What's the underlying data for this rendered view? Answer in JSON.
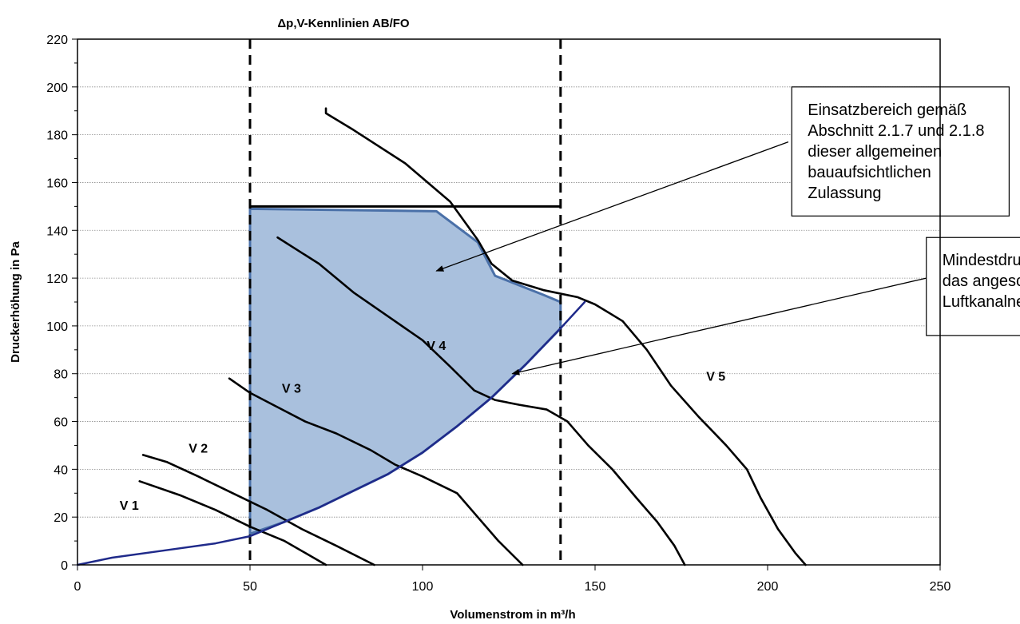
{
  "chart_data": {
    "type": "line",
    "title": "Δp,V-Kennlinien AB/FO",
    "xlabel": "Volumenstrom in m³/h",
    "ylabel": "Druckerhöhung in Pa",
    "xlim": [
      0,
      250
    ],
    "ylim": [
      0,
      220
    ],
    "x_ticks": [
      "0",
      "50",
      "100",
      "150",
      "200",
      "250"
    ],
    "y_ticks": [
      "0",
      "20",
      "40",
      "60",
      "80",
      "100",
      "120",
      "140",
      "160",
      "180",
      "200",
      "220"
    ],
    "grid": "horizontal",
    "legend": "none",
    "series": [
      {
        "name": "V 1",
        "points": [
          [
            18,
            35
          ],
          [
            30,
            29
          ],
          [
            40,
            23
          ],
          [
            50,
            16
          ],
          [
            60,
            10
          ],
          [
            66,
            5
          ],
          [
            72,
            0
          ]
        ]
      },
      {
        "name": "V 2",
        "points": [
          [
            19,
            46
          ],
          [
            26,
            43
          ],
          [
            35,
            37
          ],
          [
            45,
            30
          ],
          [
            55,
            23
          ],
          [
            65,
            15
          ],
          [
            75,
            8
          ],
          [
            86,
            0
          ]
        ]
      },
      {
        "name": "V 3",
        "points": [
          [
            44,
            78
          ],
          [
            50,
            72
          ],
          [
            58,
            66
          ],
          [
            66,
            60
          ],
          [
            75,
            55
          ],
          [
            85,
            48
          ],
          [
            92,
            42
          ],
          [
            100,
            37
          ],
          [
            110,
            30
          ],
          [
            116,
            20
          ],
          [
            122,
            10
          ],
          [
            129,
            0
          ]
        ]
      },
      {
        "name": "V 4",
        "points": [
          [
            58,
            137
          ],
          [
            70,
            126
          ],
          [
            80,
            114
          ],
          [
            90,
            104
          ],
          [
            100,
            94
          ],
          [
            108,
            83
          ],
          [
            115,
            73
          ],
          [
            121,
            69
          ],
          [
            128,
            67
          ],
          [
            136,
            65
          ],
          [
            142,
            60
          ],
          [
            148,
            50
          ],
          [
            155,
            40
          ],
          [
            162,
            28
          ],
          [
            168,
            18
          ],
          [
            173,
            8
          ],
          [
            176,
            0
          ]
        ]
      },
      {
        "name": "V 5",
        "points": [
          [
            72,
            191
          ],
          [
            72,
            189
          ],
          [
            80,
            182
          ],
          [
            95,
            168
          ],
          [
            108,
            152
          ],
          [
            116,
            136
          ],
          [
            120,
            126
          ],
          [
            126,
            119
          ],
          [
            135,
            115
          ],
          [
            145,
            112
          ],
          [
            150,
            109
          ],
          [
            158,
            102
          ],
          [
            165,
            90
          ],
          [
            172,
            75
          ],
          [
            180,
            62
          ],
          [
            188,
            50
          ],
          [
            194,
            40
          ],
          [
            198,
            28
          ],
          [
            203,
            15
          ],
          [
            208,
            5
          ],
          [
            211,
            0
          ]
        ]
      },
      {
        "name": "Mindestdruckreserve",
        "color": "#1f2a8a",
        "points": [
          [
            0,
            0
          ],
          [
            10,
            3
          ],
          [
            25,
            6
          ],
          [
            40,
            9
          ],
          [
            50,
            12
          ],
          [
            60,
            18
          ],
          [
            70,
            24
          ],
          [
            80,
            31
          ],
          [
            90,
            38
          ],
          [
            100,
            47
          ],
          [
            110,
            58
          ],
          [
            120,
            70
          ],
          [
            130,
            84
          ],
          [
            140,
            99
          ],
          [
            147,
            110
          ]
        ]
      }
    ],
    "reference_lines": [
      {
        "type": "vertical",
        "x": 50,
        "style": "dashed"
      },
      {
        "type": "vertical",
        "x": 140,
        "style": "dashed"
      },
      {
        "type": "horizontal",
        "y": 150,
        "x_from": 50,
        "x_to": 140,
        "style": "solid"
      }
    ],
    "shaded_region": {
      "color": "#a9c0dd",
      "edge_color": "#4a70a8",
      "polygon": [
        [
          50,
          13
        ],
        [
          50,
          149
        ],
        [
          104,
          148
        ],
        [
          116,
          135
        ],
        [
          121,
          121
        ],
        [
          135,
          113
        ],
        [
          140,
          110
        ],
        [
          140,
          99
        ],
        [
          130,
          84
        ],
        [
          120,
          70
        ],
        [
          110,
          58
        ],
        [
          100,
          47
        ],
        [
          90,
          38
        ],
        [
          80,
          31
        ],
        [
          70,
          24
        ],
        [
          60,
          18
        ]
      ]
    },
    "curve_labels": [
      {
        "text": "V 1",
        "x": 15,
        "y": 23
      },
      {
        "text": "V 2",
        "x": 35,
        "y": 47
      },
      {
        "text": "V 3",
        "x": 62,
        "y": 72
      },
      {
        "text": "V 4",
        "x": 104,
        "y": 90
      },
      {
        "text": "V 5",
        "x": 185,
        "y": 77
      }
    ],
    "annotations": [
      {
        "lines": [
          "Einsatzbereich gemäß",
          "Abschnitt 2.1.7 und 2.1.8",
          "dieser allgemeinen",
          "bauaufsichtlichen",
          "Zulassung"
        ],
        "box_corners": [
          [
            207,
            200
          ],
          [
            270,
            146
          ]
        ],
        "arrow_from": [
          206,
          177
        ],
        "arrow_to": [
          104,
          123
        ]
      },
      {
        "lines": [
          "Mindestdruckreserve für",
          "das angeschlossene",
          "Luftkanalnetz"
        ],
        "box_corners": [
          [
            246,
            137
          ],
          [
            280,
            96
          ]
        ],
        "arrow_from": [
          246,
          120
        ],
        "arrow_to": [
          126,
          80
        ]
      }
    ]
  }
}
